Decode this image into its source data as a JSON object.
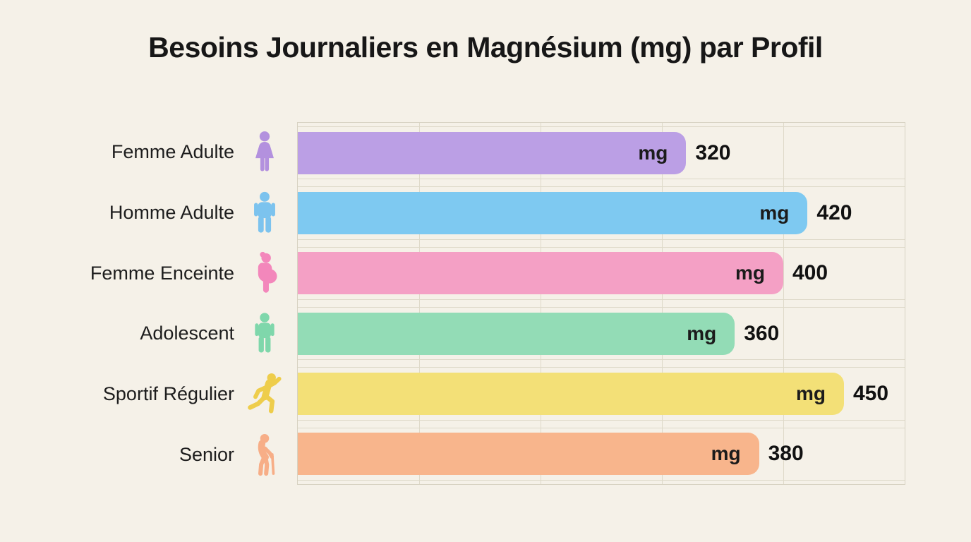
{
  "title": "Besoins Journaliers en Magnésium (mg) par Profil",
  "chart_data": {
    "type": "bar",
    "orientation": "horizontal",
    "title": "Besoins Journaliers en Magnésium (mg) par Profil",
    "xlabel": "",
    "ylabel": "",
    "xlim": [
      0,
      500
    ],
    "gridline_interval": 100,
    "grid": true,
    "legend": "none",
    "value_unit": "mg",
    "categories": [
      "Femme Adulte",
      "Homme Adulte",
      "Femme Enceinte",
      "Adolescent",
      "Sportif Régulier",
      "Senior"
    ],
    "values": [
      320,
      420,
      400,
      360,
      450,
      380
    ],
    "profiles": [
      {
        "label": "Femme Adulte",
        "value": 320,
        "unit": "mg",
        "bar_color": "#bb9fe5",
        "icon": "woman-icon",
        "icon_color": "#b391de"
      },
      {
        "label": "Homme Adulte",
        "value": 420,
        "unit": "mg",
        "bar_color": "#7ec9f1",
        "icon": "man-icon",
        "icon_color": "#7cc3ee"
      },
      {
        "label": "Femme Enceinte",
        "value": 400,
        "unit": "mg",
        "bar_color": "#f4a0c5",
        "icon": "pregnant-woman-icon",
        "icon_color": "#f387bb"
      },
      {
        "label": "Adolescent",
        "value": 360,
        "unit": "mg",
        "bar_color": "#93dcb6",
        "icon": "teenager-icon",
        "icon_color": "#7fd7ab"
      },
      {
        "label": "Sportif Régulier",
        "value": 450,
        "unit": "mg",
        "bar_color": "#f3e077",
        "icon": "runner-icon",
        "icon_color": "#eecd4b"
      },
      {
        "label": "Senior",
        "value": 380,
        "unit": "mg",
        "bar_color": "#f8b58c",
        "icon": "senior-with-cane-icon",
        "icon_color": "#f7ae87"
      }
    ]
  },
  "colors": {
    "background": "#f5f1e8",
    "plot_border": "#d7d2c2",
    "gridline": "#ded9c9",
    "title_text": "#171717",
    "label_text": "#1d1d1d",
    "value_text": "#111111",
    "bar_unit_text": "#1b1b1b"
  }
}
